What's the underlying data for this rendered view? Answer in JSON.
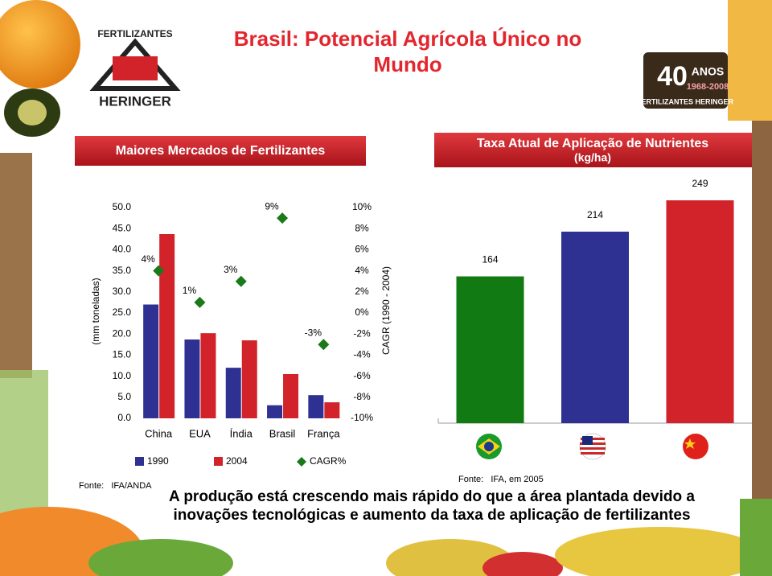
{
  "header": {
    "title_lines": [
      "Brasil: Potencial Agrícola Único no",
      "Mundo"
    ]
  },
  "logo": {
    "brand_top": "FERTILIZANTES",
    "brand_bottom": "HERINGER"
  },
  "badge": {
    "number": "40",
    "word": "ANOS",
    "years": "1968-2008",
    "brand": "FERTILIZANTES HERINGER"
  },
  "chart_data": [
    {
      "type": "bar",
      "title": "Maiores Mercados de Fertilizantes",
      "y_label": "(mm toneladas)",
      "y2_label": "CAGR (1990 - 2004)",
      "categories": [
        "China",
        "EUA",
        "Índia",
        "Brasil",
        "França"
      ],
      "series": [
        {
          "name": "1990",
          "color": "#2e3192",
          "values": [
            27,
            18.7,
            12,
            3.1,
            5.5
          ]
        },
        {
          "name": "2004",
          "color": "#d2232a",
          "values": [
            43.7,
            20.2,
            18.5,
            10.5,
            3.8
          ]
        },
        {
          "name": "CAGR%",
          "type": "scatter",
          "axis": "y2",
          "color": "#1a7a1a",
          "values": [
            4,
            1,
            3,
            9,
            -3
          ],
          "value_labels": [
            "4%",
            "1%",
            "3%",
            "9%",
            "-3%"
          ]
        }
      ],
      "ylim": [
        0,
        50
      ],
      "yticks": [
        {
          "value": 0,
          "label": "0.0"
        },
        {
          "value": 5,
          "label": "5.0"
        },
        {
          "value": 10,
          "label": "10.0"
        },
        {
          "value": 15,
          "label": "15.0"
        },
        {
          "value": 20,
          "label": "20.0"
        },
        {
          "value": 25,
          "label": "25.0"
        },
        {
          "value": 30,
          "label": "30.0"
        },
        {
          "value": 35,
          "label": "35.0"
        },
        {
          "value": 40,
          "label": "40.0"
        },
        {
          "value": 45,
          "label": "45.0"
        },
        {
          "value": 50,
          "label": "50.0"
        }
      ],
      "y2lim": [
        -10,
        10
      ],
      "y2ticks": [
        {
          "value": -10,
          "label": "-10%"
        },
        {
          "value": -8,
          "label": "-8%"
        },
        {
          "value": -6,
          "label": "-6%"
        },
        {
          "value": -4,
          "label": "-4%"
        },
        {
          "value": -2,
          "label": "-2%"
        },
        {
          "value": 0,
          "label": "0%"
        },
        {
          "value": 2,
          "label": "2%"
        },
        {
          "value": 4,
          "label": "4%"
        },
        {
          "value": 6,
          "label": "6%"
        },
        {
          "value": 8,
          "label": "8%"
        },
        {
          "value": 10,
          "label": "10%"
        }
      ],
      "source": "Fonte:   IFA/ANDA"
    },
    {
      "type": "bar",
      "title": "Taxa Atual de Aplicação de Nutrientes",
      "subtitle": "(kg/ha)",
      "categories": [
        null,
        null,
        null
      ],
      "values": [
        164,
        214,
        249
      ],
      "colors": [
        "#127a12",
        "#2e3192",
        "#d2232a"
      ],
      "source": "Fonte:   IFA, em 2005"
    }
  ],
  "footer": {
    "lines": [
      "A produção está crescendo mais rápido do que a área plantada devido a",
      "inovações tecnológicas e aumento da taxa de aplicação de fertilizantes"
    ]
  }
}
